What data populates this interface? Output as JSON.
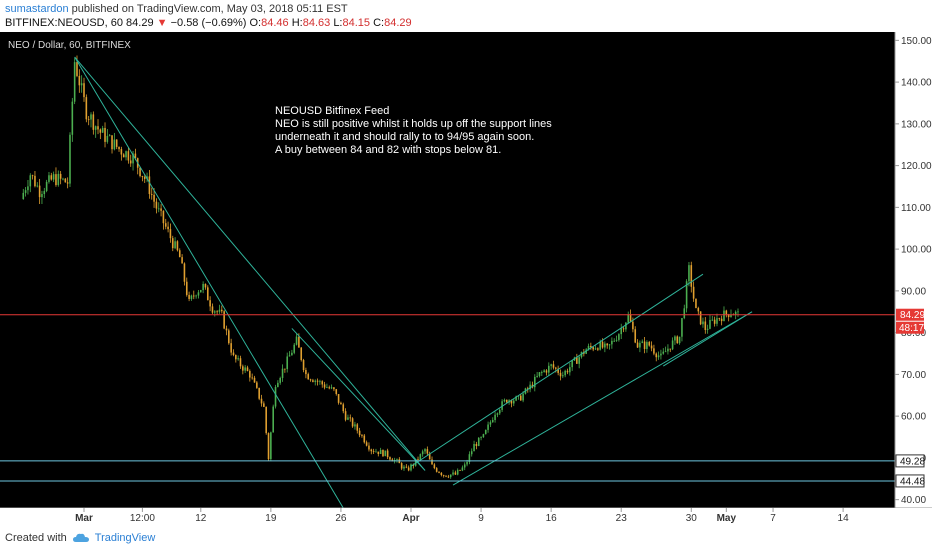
{
  "header": {
    "publisher": "sumastardon",
    "published_text": "published on TradingView.com, May 03, 2018 05:11 EST",
    "symbol": "BITFINEX:NEOUSD, 60",
    "last": "84.29",
    "arrow": "▼",
    "change": "−0.58 (−0.69%)",
    "o_label": "O:",
    "o_val": "84.46",
    "h_label": "H:",
    "h_val": "84.63",
    "l_label": "L:",
    "l_val": "84.15",
    "c_label": "C:",
    "c_val": "84.29"
  },
  "chart_data": {
    "type": "candlestick",
    "title": "NEO / Dollar, 60, BITFINEX",
    "annotation": [
      "NEOUSD  Bitfinex Feed",
      "NEO is still positive whilst it holds up off the support lines",
      "underneath it and should rally to to 94/95 again soon.",
      "A buy between 84 and 82 with stops below 81."
    ],
    "ylim": [
      38,
      152
    ],
    "yticks": [
      "150.00",
      "140.00",
      "130.00",
      "120.00",
      "110.00",
      "100.00",
      "90.00",
      "80.00",
      "70.00",
      "60.00",
      "50.00",
      "40.00"
    ],
    "ytick_values": [
      150,
      140,
      130,
      120,
      110,
      100,
      90,
      80,
      70,
      60,
      50,
      40
    ],
    "xticks": [
      {
        "label": "Mar",
        "day": 0
      },
      {
        "label": "12:00",
        "day": 2.5
      },
      {
        "label": "12",
        "day": 5
      },
      {
        "label": "19",
        "day": 8
      },
      {
        "label": "26",
        "day": 11
      },
      {
        "label": "Apr",
        "day": 14
      },
      {
        "label": "9",
        "day": 17
      },
      {
        "label": "16",
        "day": 20
      },
      {
        "label": "23",
        "day": 23
      },
      {
        "label": "30",
        "day": 26
      },
      {
        "label": "May",
        "day": 27.5
      },
      {
        "label": "7",
        "day": 29.5
      },
      {
        "label": "14",
        "day": 32.5
      }
    ],
    "price_path": [
      [
        -2.6,
        112
      ],
      [
        -2.2,
        118
      ],
      [
        -1.8,
        114
      ],
      [
        -1.2,
        117
      ],
      [
        -0.6,
        116
      ],
      [
        -0.3,
        145
      ],
      [
        0.2,
        133
      ],
      [
        0.8,
        128
      ],
      [
        1.6,
        124
      ],
      [
        2.2,
        122
      ],
      [
        2.8,
        116
      ],
      [
        3.2,
        110
      ],
      [
        3.7,
        104
      ],
      [
        4.2,
        98
      ],
      [
        4.6,
        87
      ],
      [
        4.9,
        90
      ],
      [
        5.2,
        91
      ],
      [
        5.6,
        86
      ],
      [
        6.0,
        84
      ],
      [
        6.5,
        74
      ],
      [
        7.2,
        70
      ],
      [
        7.8,
        62
      ],
      [
        8.0,
        50
      ],
      [
        8.3,
        68
      ],
      [
        8.7,
        72
      ],
      [
        9.2,
        78
      ],
      [
        9.6,
        70
      ],
      [
        10.2,
        68
      ],
      [
        10.8,
        66
      ],
      [
        11.3,
        60
      ],
      [
        11.9,
        56
      ],
      [
        12.4,
        52
      ],
      [
        13.0,
        51
      ],
      [
        13.5,
        49
      ],
      [
        13.9,
        47
      ],
      [
        14.3,
        49
      ],
      [
        14.7,
        52
      ],
      [
        15.0,
        48
      ],
      [
        15.5,
        46
      ],
      [
        16.0,
        46
      ],
      [
        16.4,
        48
      ],
      [
        16.8,
        53
      ],
      [
        17.2,
        55
      ],
      [
        17.7,
        61
      ],
      [
        18.2,
        64
      ],
      [
        18.7,
        64
      ],
      [
        19.2,
        67
      ],
      [
        19.6,
        70
      ],
      [
        20.1,
        72
      ],
      [
        20.6,
        70
      ],
      [
        21.1,
        73
      ],
      [
        21.6,
        76
      ],
      [
        22.1,
        77
      ],
      [
        22.5,
        76
      ],
      [
        23.0,
        80
      ],
      [
        23.4,
        84
      ],
      [
        23.8,
        77
      ],
      [
        24.3,
        77
      ],
      [
        24.8,
        74
      ],
      [
        25.2,
        77
      ],
      [
        25.6,
        79
      ],
      [
        26.0,
        95
      ],
      [
        26.3,
        85
      ],
      [
        26.7,
        81
      ],
      [
        27.1,
        83
      ],
      [
        27.4,
        84
      ],
      [
        27.8,
        85
      ],
      [
        28.1,
        84.29
      ]
    ],
    "horizontal_levels": [
      {
        "value": 49.28,
        "label": "49.28",
        "color": "#6ec6e0"
      },
      {
        "value": 44.48,
        "label": "44.48",
        "color": "#6ec6e0"
      },
      {
        "value": 84.29,
        "label": "84.29",
        "color": "#e53935"
      }
    ],
    "countdown_label": "48:17",
    "trendlines": [
      {
        "from": [
          -0.4,
          146
        ],
        "to": [
          11.1,
          38
        ]
      },
      {
        "from": [
          -0.4,
          146
        ],
        "to": [
          14.6,
          47
        ]
      },
      {
        "from": [
          8.9,
          81
        ],
        "to": [
          14.6,
          47
        ]
      },
      {
        "from": [
          14.0,
          48
        ],
        "to": [
          26.5,
          94
        ]
      },
      {
        "from": [
          15.8,
          43.5
        ],
        "to": [
          28.6,
          85
        ]
      },
      {
        "from": [
          24.8,
          72
        ],
        "to": [
          28.6,
          85
        ]
      }
    ],
    "colors": {
      "up": "#4caf50",
      "down": "#e0a030",
      "trend": "#2fb39a",
      "price": "#e53935",
      "level": "#6ec6e0"
    }
  },
  "footer": {
    "created_with": "Created with",
    "brand": "TradingView"
  }
}
